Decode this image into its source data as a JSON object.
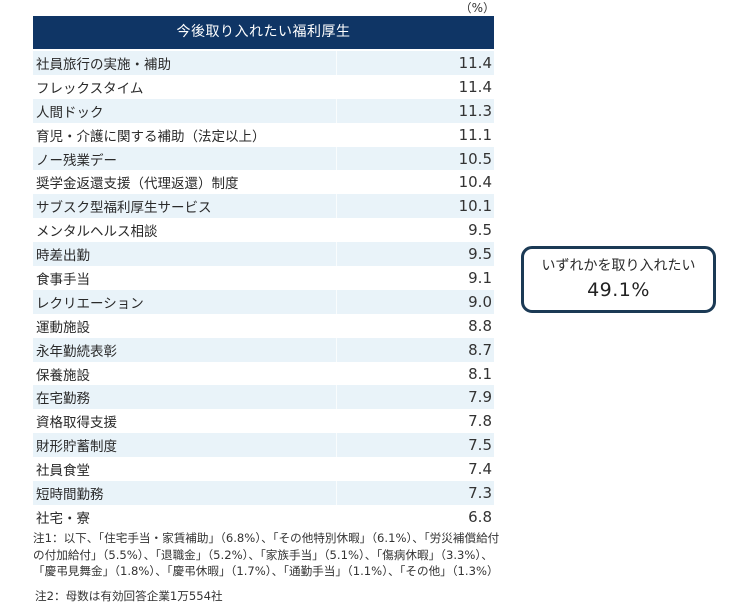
{
  "unit_label": "（%）",
  "table": {
    "title": "今後取り入れたい福利厚生",
    "rows": [
      {
        "label": "社員旅行の実施・補助",
        "value": "11.4"
      },
      {
        "label": "フレックスタイム",
        "value": "11.4"
      },
      {
        "label": "人間ドック",
        "value": "11.3"
      },
      {
        "label": "育児・介護に関する補助（法定以上）",
        "value": "11.1"
      },
      {
        "label": "ノー残業デー",
        "value": "10.5"
      },
      {
        "label": "奨学金返還支援（代理返還）制度",
        "value": "10.4"
      },
      {
        "label": "サブスク型福利厚生サービス",
        "value": "10.1"
      },
      {
        "label": "メンタルヘルス相談",
        "value": "9.5"
      },
      {
        "label": "時差出勤",
        "value": "9.5"
      },
      {
        "label": "食事手当",
        "value": "9.1"
      },
      {
        "label": "レクリエーション",
        "value": "9.0"
      },
      {
        "label": "運動施設",
        "value": "8.8"
      },
      {
        "label": "永年勤続表彰",
        "value": "8.7"
      },
      {
        "label": "保養施設",
        "value": "8.1"
      },
      {
        "label": "在宅勤務",
        "value": "7.9"
      },
      {
        "label": "資格取得支援",
        "value": "7.8"
      },
      {
        "label": "財形貯蓄制度",
        "value": "7.5"
      },
      {
        "label": "社員食堂",
        "value": "7.4"
      },
      {
        "label": "短時間勤務",
        "value": "7.3"
      },
      {
        "label": "社宅・寮",
        "value": "6.8"
      }
    ]
  },
  "callout": {
    "label": "いずれかを取り入れたい",
    "value": "49.1%"
  },
  "notes": {
    "note1": "注1：以下、「住宅手当・家賃補助」（6.8%）、「その他特別休暇」（6.1%）、「労災補償給付\nの付加給付」（5.5%）、「退職金」（5.2%）、「家族手当」（5.1%）、「傷病休暇」（3.3%）、\n「慶弔見舞金」（1.8%）、「慶弔休暇」（1.7%）、「通勤手当」（1.1%）、「その他」（1.3%）",
    "note2": "注2：母数は有効回答企業1万554社"
  },
  "colors": {
    "header_bg": "#0f3565",
    "row_shade": "#e9f3f9",
    "callout_border": "#1b3a55"
  }
}
